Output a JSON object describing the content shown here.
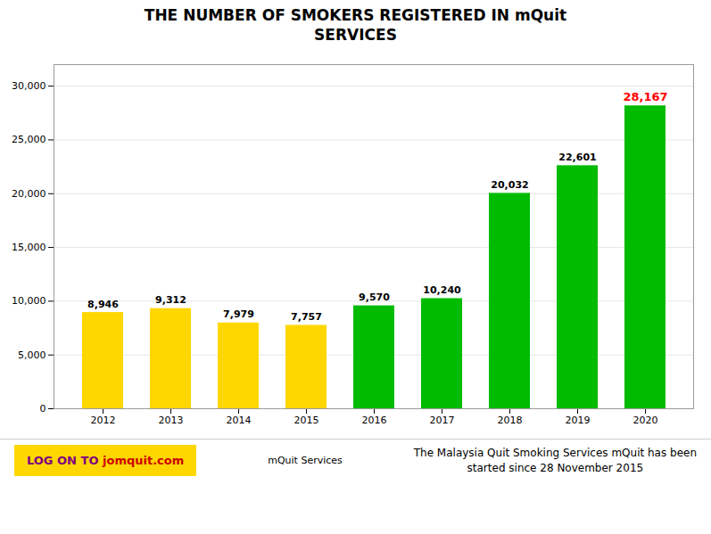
{
  "chart_data": {
    "type": "bar",
    "title": "THE NUMBER OF SMOKERS REGISTERED IN mQuit\nSERVICES",
    "categories": [
      "2012",
      "2013",
      "2014",
      "2015",
      "2016",
      "2017",
      "2018",
      "2019",
      "2020"
    ],
    "values": [
      8946,
      9312,
      7979,
      7757,
      9570,
      10240,
      20032,
      22601,
      28167
    ],
    "value_labels": [
      "8,946",
      "9,312",
      "7,979",
      "7,757",
      "9,570",
      "10,240",
      "20,032",
      "22,601",
      "28,167"
    ],
    "colors": [
      "#FFD700",
      "#FFD700",
      "#FFD700",
      "#FFD700",
      "#00BB00",
      "#00BB00",
      "#00BB00",
      "#00BB00",
      "#00BB00"
    ],
    "data_labels": true,
    "ylim": [
      0,
      32000
    ],
    "yticks": [
      0,
      {
        "value": 5000,
        "label": "5,000"
      },
      {
        "value": 10000,
        "label": "10,000"
      },
      {
        "value": 15000,
        "label": "15,000"
      },
      {
        "value": 20000,
        "label": "20,000"
      },
      {
        "value": 25000,
        "label": "25,000"
      },
      {
        "value": 30000,
        "label": "30,000"
      }
    ],
    "grid": true,
    "annotations": [
      "LOG ON TO",
      "jomquit.com",
      "mQuit Services",
      "The Malaysia Quit Smoking Services mQuit has been",
      "started since 28 November 2015"
    ]
  }
}
